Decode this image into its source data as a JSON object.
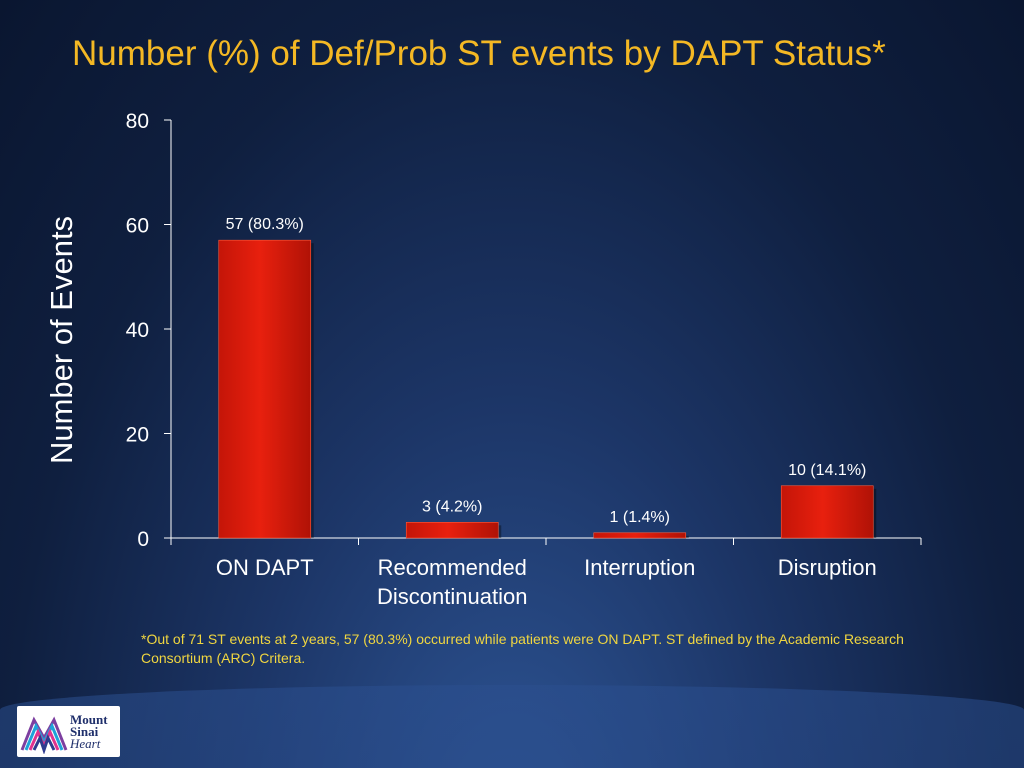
{
  "title": "Number (%) of Def/Prob ST events by DAPT Status*",
  "footnote": "*Out of 71 ST events at 2 years, 57 (80.3%) occurred while patients were ON DAPT.  ST defined by the Academic Research Consortium (ARC) Critera.",
  "logo": {
    "line1": "Mount",
    "line2": "Sinai",
    "line3": "Heart"
  },
  "colors": {
    "title": "#f4b824",
    "bar": "#e8200e",
    "text": "#ffffff",
    "footnote": "#f0d640"
  },
  "chart_data": {
    "type": "bar",
    "title": "Number (%) of Def/Prob ST events by DAPT Status*",
    "xlabel": "",
    "ylabel": "Number of Events",
    "ylim": [
      0,
      80
    ],
    "yticks": [
      0,
      20,
      40,
      60,
      80
    ],
    "grid": false,
    "categories": [
      [
        "ON DAPT"
      ],
      [
        "Recommended",
        "Discontinuation"
      ],
      [
        "Interruption"
      ],
      [
        "Disruption"
      ]
    ],
    "values": [
      57,
      3,
      1,
      10
    ],
    "data_labels": [
      "57 (80.3%)",
      "3 (4.2%)",
      "1 (1.4%)",
      "10 (14.1%)"
    ]
  }
}
